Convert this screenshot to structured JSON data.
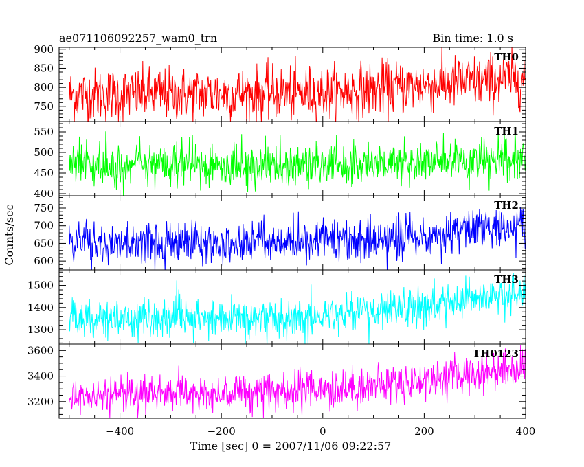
{
  "chart_data": {
    "type": "line",
    "title": "ae071106092257_wam0_trn",
    "bin_time": "Bin time: 1.0 s",
    "xlabel": "Time [sec] 0 = 2007/11/06 09:22:57",
    "ylabel": "Counts/sec",
    "xlim": [
      -520,
      400
    ],
    "x_ticks": [
      -400,
      -200,
      0,
      200,
      400
    ],
    "x_samples": {
      "start": -500,
      "end": 399,
      "step": 1
    },
    "panels": [
      {
        "name": "TH0",
        "color": "#ff0000",
        "ylim": [
          710,
          905
        ],
        "y_ticks": [
          750,
          800,
          850,
          900
        ],
        "trend": [
          [
            -500,
            780
          ],
          [
            0,
            785
          ],
          [
            200,
            805
          ],
          [
            400,
            825
          ]
        ],
        "noise": 35
      },
      {
        "name": "TH1",
        "color": "#00ff00",
        "ylim": [
          395,
          575
        ],
        "y_ticks": [
          400,
          450,
          500,
          550
        ],
        "trend": [
          [
            -500,
            468
          ],
          [
            0,
            470
          ],
          [
            200,
            475
          ],
          [
            400,
            480
          ]
        ],
        "noise": 27
      },
      {
        "name": "TH2",
        "color": "#0000ff",
        "ylim": [
          575,
          785
        ],
        "y_ticks": [
          600,
          650,
          700,
          750
        ],
        "trend": [
          [
            -500,
            650
          ],
          [
            0,
            655
          ],
          [
            200,
            670
          ],
          [
            400,
            700
          ]
        ],
        "noise": 30
      },
      {
        "name": "TH3",
        "color": "#00ffff",
        "ylim": [
          1235,
          1570
        ],
        "y_ticks": [
          1300,
          1400,
          1500
        ],
        "trend": [
          [
            -500,
            1345
          ],
          [
            0,
            1360
          ],
          [
            200,
            1400
          ],
          [
            400,
            1460
          ]
        ],
        "noise": 45
      },
      {
        "name": "TH0123",
        "color": "#ff00ff",
        "ylim": [
          3070,
          3650
        ],
        "y_ticks": [
          3200,
          3400,
          3600
        ],
        "trend": [
          [
            -500,
            3245
          ],
          [
            0,
            3290
          ],
          [
            200,
            3365
          ],
          [
            400,
            3480
          ]
        ],
        "noise": 75
      }
    ]
  }
}
